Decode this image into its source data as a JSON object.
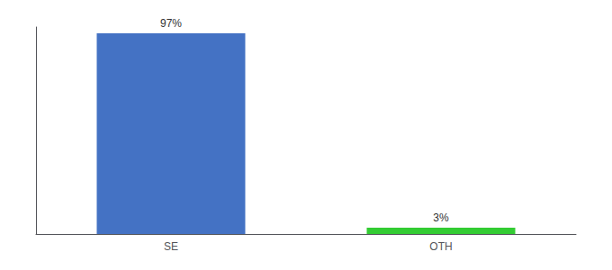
{
  "chart_data": {
    "type": "bar",
    "categories": [
      "SE",
      "OTH"
    ],
    "values": [
      97,
      3
    ],
    "value_labels": [
      "97%",
      "3%"
    ],
    "colors": [
      "#4472C4",
      "#33CC33"
    ],
    "ylim": [
      0,
      100
    ],
    "yticks": [],
    "grid": false,
    "data_labels": true,
    "tick_labels": "x"
  }
}
